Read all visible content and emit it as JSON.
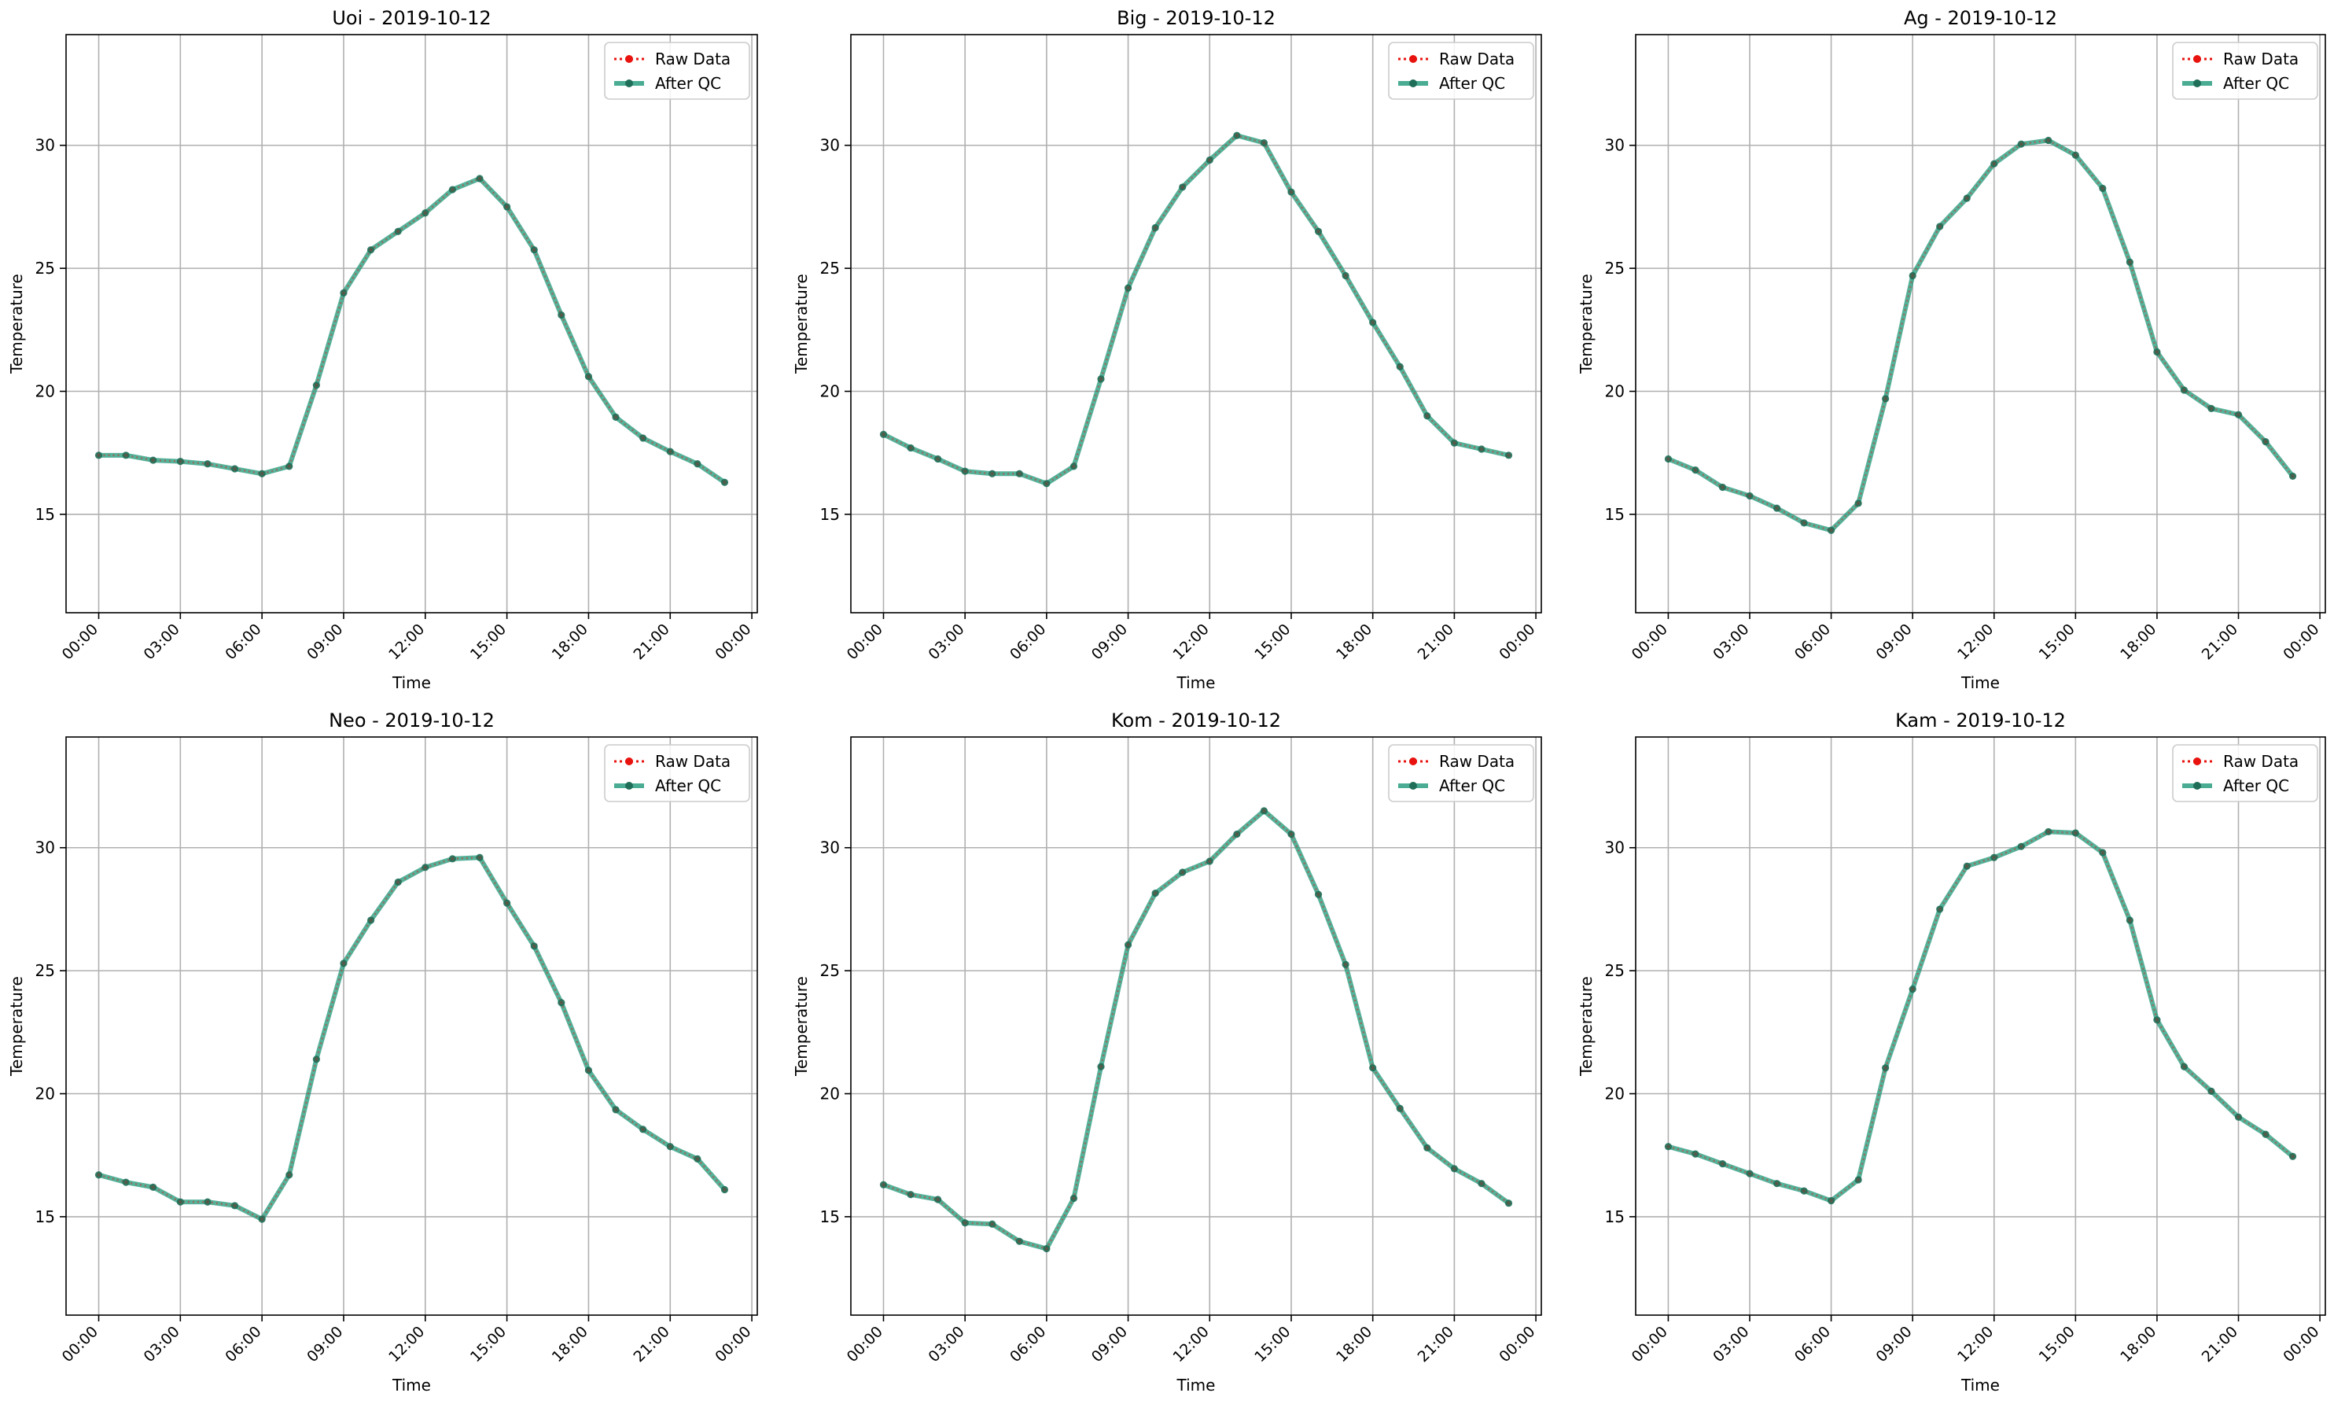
{
  "colors": {
    "raw": "#e8130f",
    "qc": "#2a9d80",
    "grid": "#b0b0b0",
    "frame": "#000000"
  },
  "legend": {
    "raw_label": "Raw Data",
    "qc_label": "After QC"
  },
  "chart_data": [
    {
      "type": "line",
      "title": "Uoi - 2019-10-12",
      "xlabel": "Time",
      "ylabel": "Temperature",
      "xticks": [
        "00:00",
        "03:00",
        "06:00",
        "09:00",
        "12:00",
        "15:00",
        "18:00",
        "21:00",
        "00:00"
      ],
      "yticks": [
        15,
        20,
        25,
        30
      ],
      "xlim": [
        -1.2,
        24.2
      ],
      "ylim": [
        11,
        34.5
      ],
      "grid": true,
      "legend_position": "top-right",
      "x_hours": [
        0,
        1,
        2,
        3,
        4,
        5,
        6,
        7,
        8,
        9,
        10,
        11,
        12,
        13,
        14,
        15,
        16,
        17,
        18,
        19,
        20,
        21,
        22,
        23
      ],
      "series": [
        {
          "name": "Raw Data",
          "values": [
            17.4,
            17.4,
            17.2,
            17.15,
            17.05,
            16.85,
            16.65,
            16.95,
            20.25,
            24.0,
            25.75,
            26.5,
            27.25,
            28.2,
            28.65,
            27.5,
            25.75,
            23.1,
            20.6,
            18.95,
            18.1,
            17.55,
            17.05,
            16.3
          ]
        },
        {
          "name": "After QC",
          "values": [
            17.4,
            17.4,
            17.2,
            17.15,
            17.05,
            16.85,
            16.65,
            16.95,
            20.25,
            24.0,
            25.75,
            26.5,
            27.25,
            28.2,
            28.65,
            27.5,
            25.75,
            23.1,
            20.6,
            18.95,
            18.1,
            17.55,
            17.05,
            16.3
          ]
        }
      ]
    },
    {
      "type": "line",
      "title": "Big - 2019-10-12",
      "xlabel": "Time",
      "ylabel": "Temperature",
      "xticks": [
        "00:00",
        "03:00",
        "06:00",
        "09:00",
        "12:00",
        "15:00",
        "18:00",
        "21:00",
        "00:00"
      ],
      "yticks": [
        15,
        20,
        25,
        30
      ],
      "xlim": [
        -1.2,
        24.2
      ],
      "ylim": [
        11,
        34.5
      ],
      "grid": true,
      "legend_position": "top-right",
      "x_hours": [
        0,
        1,
        2,
        3,
        4,
        5,
        6,
        7,
        8,
        9,
        10,
        11,
        12,
        13,
        14,
        15,
        16,
        17,
        18,
        19,
        20,
        21,
        22,
        23
      ],
      "series": [
        {
          "name": "Raw Data",
          "values": [
            18.25,
            17.7,
            17.25,
            16.75,
            16.65,
            16.65,
            16.25,
            16.95,
            20.5,
            24.2,
            26.65,
            28.3,
            29.4,
            30.4,
            30.1,
            28.1,
            26.5,
            24.7,
            22.8,
            21.0,
            19.0,
            17.9,
            17.65,
            17.4
          ]
        },
        {
          "name": "After QC",
          "values": [
            18.25,
            17.7,
            17.25,
            16.75,
            16.65,
            16.65,
            16.25,
            16.95,
            20.5,
            24.2,
            26.65,
            28.3,
            29.4,
            30.4,
            30.1,
            28.1,
            26.5,
            24.7,
            22.8,
            21.0,
            19.0,
            17.9,
            17.65,
            17.4
          ]
        }
      ]
    },
    {
      "type": "line",
      "title": "Ag - 2019-10-12",
      "xlabel": "Time",
      "ylabel": "Temperature",
      "xticks": [
        "00:00",
        "03:00",
        "06:00",
        "09:00",
        "12:00",
        "15:00",
        "18:00",
        "21:00",
        "00:00"
      ],
      "yticks": [
        15,
        20,
        25,
        30
      ],
      "xlim": [
        -1.2,
        24.2
      ],
      "ylim": [
        11,
        34.5
      ],
      "grid": true,
      "legend_position": "top-right",
      "x_hours": [
        0,
        1,
        2,
        3,
        4,
        5,
        6,
        7,
        8,
        9,
        10,
        11,
        12,
        13,
        14,
        15,
        16,
        17,
        18,
        19,
        20,
        21,
        22,
        23
      ],
      "series": [
        {
          "name": "Raw Data",
          "values": [
            17.25,
            16.8,
            16.1,
            15.75,
            15.25,
            14.65,
            14.35,
            15.45,
            19.7,
            24.7,
            26.7,
            27.85,
            29.25,
            30.05,
            30.2,
            29.6,
            28.25,
            25.25,
            21.6,
            20.05,
            19.3,
            19.05,
            17.95,
            16.55
          ]
        },
        {
          "name": "After QC",
          "values": [
            17.25,
            16.8,
            16.1,
            15.75,
            15.25,
            14.65,
            14.35,
            15.45,
            19.7,
            24.7,
            26.7,
            27.85,
            29.25,
            30.05,
            30.2,
            29.6,
            28.25,
            25.25,
            21.6,
            20.05,
            19.3,
            19.05,
            17.95,
            16.55
          ]
        }
      ]
    },
    {
      "type": "line",
      "title": "Neo - 2019-10-12",
      "xlabel": "Time",
      "ylabel": "Temperature",
      "xticks": [
        "00:00",
        "03:00",
        "06:00",
        "09:00",
        "12:00",
        "15:00",
        "18:00",
        "21:00",
        "00:00"
      ],
      "yticks": [
        15,
        20,
        25,
        30
      ],
      "xlim": [
        -1.2,
        24.2
      ],
      "ylim": [
        11,
        34.5
      ],
      "grid": true,
      "legend_position": "top-right",
      "x_hours": [
        0,
        1,
        2,
        3,
        4,
        5,
        6,
        7,
        8,
        9,
        10,
        11,
        12,
        13,
        14,
        15,
        16,
        17,
        18,
        19,
        20,
        21,
        22,
        23
      ],
      "series": [
        {
          "name": "Raw Data",
          "values": [
            16.7,
            16.4,
            16.2,
            15.6,
            15.6,
            15.45,
            14.9,
            16.7,
            21.4,
            25.3,
            27.05,
            28.6,
            29.2,
            29.55,
            29.6,
            27.75,
            26.0,
            23.7,
            20.95,
            19.35,
            18.55,
            17.85,
            17.35,
            16.1
          ]
        },
        {
          "name": "After QC",
          "values": [
            16.7,
            16.4,
            16.2,
            15.6,
            15.6,
            15.45,
            14.9,
            16.7,
            21.4,
            25.3,
            27.05,
            28.6,
            29.2,
            29.55,
            29.6,
            27.75,
            26.0,
            23.7,
            20.95,
            19.35,
            18.55,
            17.85,
            17.35,
            16.1
          ]
        }
      ]
    },
    {
      "type": "line",
      "title": "Kom - 2019-10-12",
      "xlabel": "Time",
      "ylabel": "Temperature",
      "xticks": [
        "00:00",
        "03:00",
        "06:00",
        "09:00",
        "12:00",
        "15:00",
        "18:00",
        "21:00",
        "00:00"
      ],
      "yticks": [
        15,
        20,
        25,
        30
      ],
      "xlim": [
        -1.2,
        24.2
      ],
      "ylim": [
        11,
        34.5
      ],
      "grid": true,
      "legend_position": "top-right",
      "x_hours": [
        0,
        1,
        2,
        3,
        4,
        5,
        6,
        7,
        8,
        9,
        10,
        11,
        12,
        13,
        14,
        15,
        16,
        17,
        18,
        19,
        20,
        21,
        22,
        23
      ],
      "series": [
        {
          "name": "Raw Data",
          "values": [
            16.3,
            15.9,
            15.7,
            14.75,
            14.7,
            14.0,
            13.7,
            15.75,
            21.1,
            26.05,
            28.15,
            29.0,
            29.45,
            30.55,
            31.5,
            30.55,
            28.1,
            25.25,
            21.05,
            19.4,
            17.8,
            16.95,
            16.35,
            15.55
          ]
        },
        {
          "name": "After QC",
          "values": [
            16.3,
            15.9,
            15.7,
            14.75,
            14.7,
            14.0,
            13.7,
            15.75,
            21.1,
            26.05,
            28.15,
            29.0,
            29.45,
            30.55,
            31.5,
            30.55,
            28.1,
            25.25,
            21.05,
            19.4,
            17.8,
            16.95,
            16.35,
            15.55
          ]
        }
      ]
    },
    {
      "type": "line",
      "title": "Kam - 2019-10-12",
      "xlabel": "Time",
      "ylabel": "Temperature",
      "xticks": [
        "00:00",
        "03:00",
        "06:00",
        "09:00",
        "12:00",
        "15:00",
        "18:00",
        "21:00",
        "00:00"
      ],
      "yticks": [
        15,
        20,
        25,
        30
      ],
      "xlim": [
        -1.2,
        24.2
      ],
      "ylim": [
        11,
        34.5
      ],
      "grid": true,
      "legend_position": "top-right",
      "x_hours": [
        0,
        1,
        2,
        3,
        4,
        5,
        6,
        7,
        8,
        9,
        10,
        11,
        12,
        13,
        14,
        15,
        16,
        17,
        18,
        19,
        20,
        21,
        22,
        23
      ],
      "series": [
        {
          "name": "Raw Data",
          "values": [
            17.85,
            17.55,
            17.15,
            16.75,
            16.35,
            16.05,
            15.65,
            16.5,
            21.05,
            24.25,
            27.5,
            29.25,
            29.6,
            30.05,
            30.65,
            30.6,
            29.8,
            27.05,
            23.0,
            21.1,
            20.1,
            19.05,
            18.35,
            17.45
          ]
        },
        {
          "name": "After QC",
          "values": [
            17.85,
            17.55,
            17.15,
            16.75,
            16.35,
            16.05,
            15.65,
            16.5,
            21.05,
            24.25,
            27.5,
            29.25,
            29.6,
            30.05,
            30.65,
            30.6,
            29.8,
            27.05,
            23.0,
            21.1,
            20.1,
            19.05,
            18.35,
            17.45
          ]
        }
      ]
    }
  ]
}
